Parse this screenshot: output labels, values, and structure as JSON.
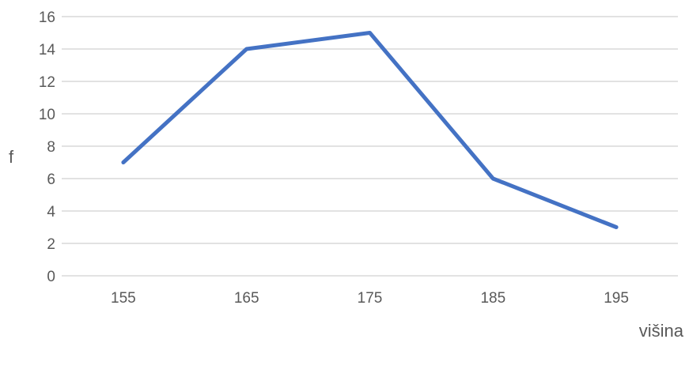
{
  "chart_data": {
    "type": "line",
    "title": "",
    "xlabel": "višina",
    "ylabel": "f",
    "categories": [
      "155",
      "165",
      "175",
      "185",
      "195"
    ],
    "series": [
      {
        "values": [
          7,
          14,
          15,
          6,
          3
        ],
        "color": "#4472c4"
      }
    ],
    "ylim": [
      0,
      16
    ],
    "yticks": [
      0,
      2,
      4,
      6,
      8,
      10,
      12,
      14,
      16
    ],
    "grid": true,
    "legend": "none"
  }
}
